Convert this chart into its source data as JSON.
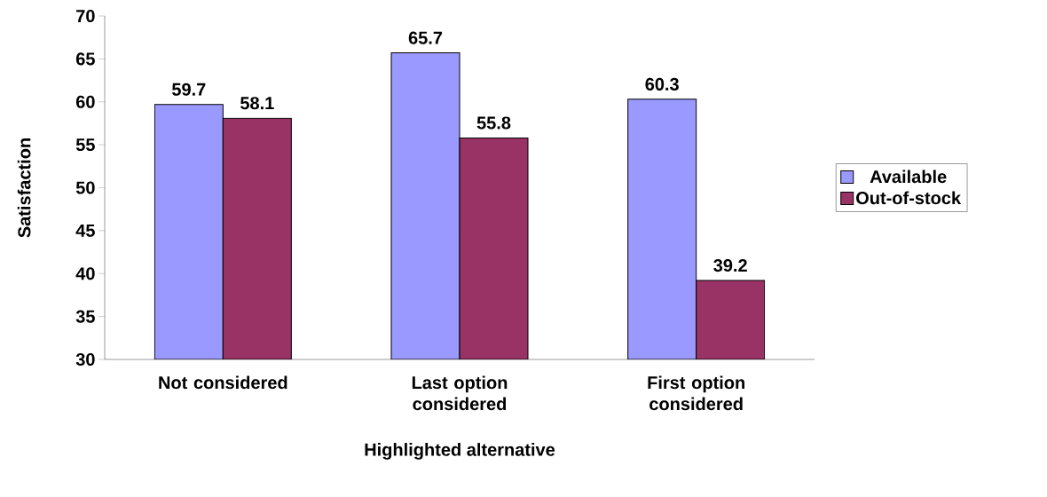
{
  "chart_data": {
    "type": "bar",
    "xlabel": "Highlighted alternative",
    "ylabel": "Satisfaction",
    "categories": [
      "Not considered",
      "Last option considered",
      "First option considered"
    ],
    "series": [
      {
        "name": "Available",
        "color": "#9999ff",
        "values": [
          59.7,
          65.7,
          60.3
        ]
      },
      {
        "name": "Out-of-stock",
        "color": "#993366",
        "values": [
          58.1,
          55.8,
          39.2
        ]
      }
    ],
    "ylim": [
      30,
      70
    ],
    "yticks": [
      30,
      35,
      40,
      45,
      50,
      55,
      60,
      65,
      70
    ],
    "data_labels": true,
    "legend": "right",
    "grid": false
  }
}
